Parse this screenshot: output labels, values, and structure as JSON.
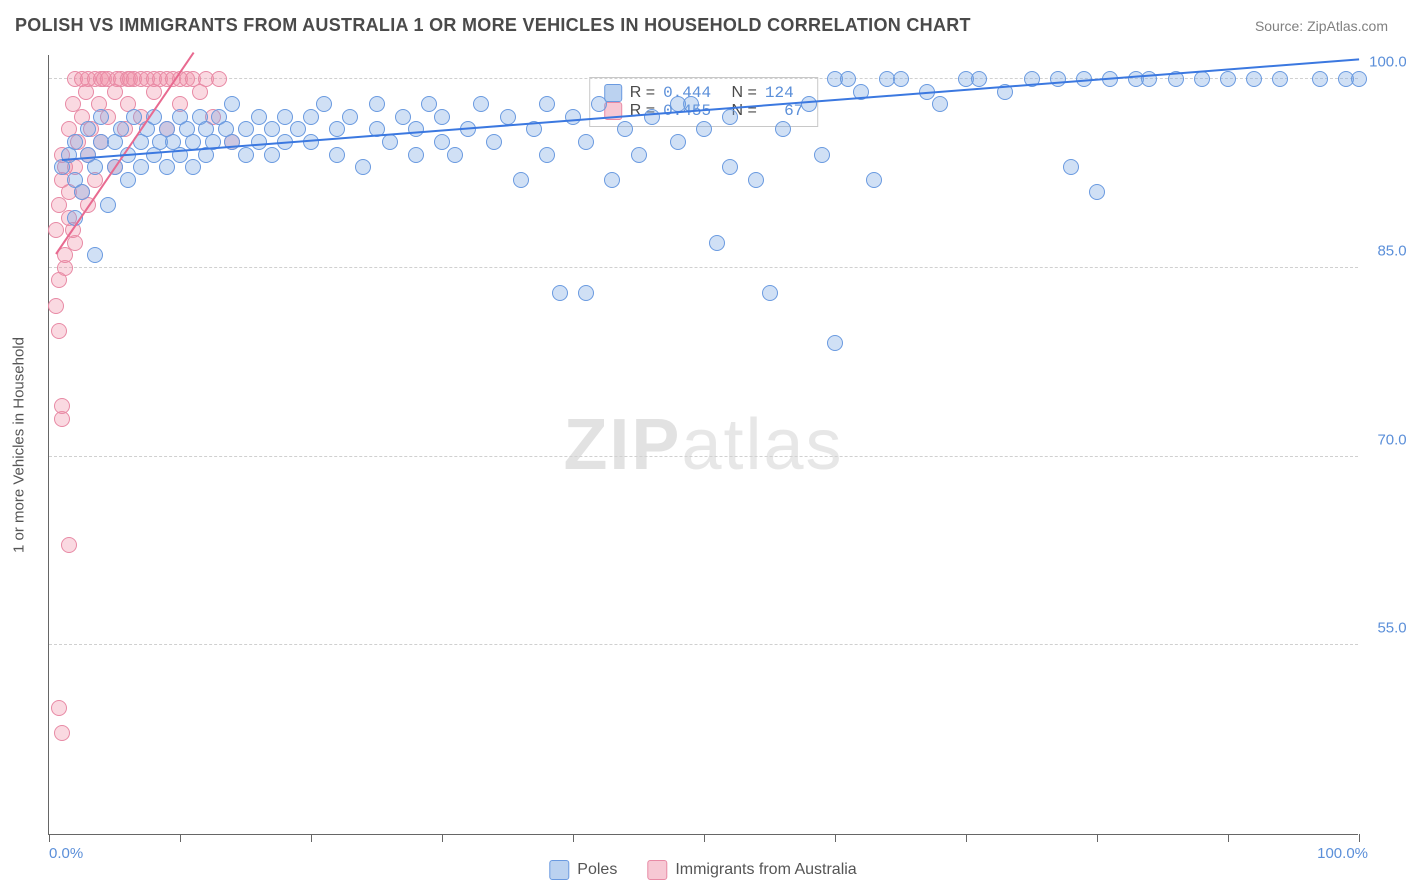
{
  "title": "POLISH VS IMMIGRANTS FROM AUSTRALIA 1 OR MORE VEHICLES IN HOUSEHOLD CORRELATION CHART",
  "source": "Source: ZipAtlas.com",
  "watermark_bold": "ZIP",
  "watermark_light": "atlas",
  "chart": {
    "type": "scatter",
    "y_axis_title": "1 or more Vehicles in Household",
    "background_color": "#ffffff",
    "grid_color": "#d0d0d0",
    "axis_color": "#666666",
    "xlim": [
      0,
      100
    ],
    "ylim": [
      40,
      102
    ],
    "x_ticks": [
      0,
      10,
      20,
      30,
      40,
      50,
      60,
      70,
      80,
      90,
      100
    ],
    "x_tick_labels": {
      "0": "0.0%",
      "100": "100.0%"
    },
    "y_ticks": [
      55,
      70,
      85,
      100
    ],
    "y_tick_labels": [
      "55.0%",
      "70.0%",
      "85.0%",
      "100.0%"
    ],
    "tick_label_color": "#5b8fd9",
    "tick_label_fontsize": 15,
    "marker_size": 16,
    "series": {
      "blue": {
        "label": "Poles",
        "R": "0.444",
        "N": "124",
        "fill_color": "rgba(120,165,225,0.35)",
        "stroke_color": "#6a9ae0",
        "trend_color": "#3b78e0",
        "trend": {
          "x1": 1,
          "y1": 93.5,
          "x2": 100,
          "y2": 101.5
        },
        "points": [
          [
            1,
            93
          ],
          [
            1.5,
            94
          ],
          [
            2,
            92
          ],
          [
            2,
            95
          ],
          [
            2.5,
            91
          ],
          [
            3,
            94
          ],
          [
            3,
            96
          ],
          [
            3.5,
            93
          ],
          [
            4,
            95
          ],
          [
            4,
            97
          ],
          [
            4.5,
            90
          ],
          [
            5,
            95
          ],
          [
            5,
            93
          ],
          [
            5.5,
            96
          ],
          [
            6,
            94
          ],
          [
            6,
            92
          ],
          [
            6.5,
            97
          ],
          [
            7,
            95
          ],
          [
            7,
            93
          ],
          [
            7.5,
            96
          ],
          [
            8,
            94
          ],
          [
            8,
            97
          ],
          [
            8.5,
            95
          ],
          [
            9,
            93
          ],
          [
            9,
            96
          ],
          [
            9.5,
            95
          ],
          [
            10,
            97
          ],
          [
            10,
            94
          ],
          [
            10.5,
            96
          ],
          [
            11,
            95
          ],
          [
            11,
            93
          ],
          [
            11.5,
            97
          ],
          [
            12,
            96
          ],
          [
            12,
            94
          ],
          [
            12.5,
            95
          ],
          [
            13,
            97
          ],
          [
            13.5,
            96
          ],
          [
            14,
            95
          ],
          [
            14,
            98
          ],
          [
            15,
            96
          ],
          [
            15,
            94
          ],
          [
            16,
            97
          ],
          [
            16,
            95
          ],
          [
            17,
            96
          ],
          [
            17,
            94
          ],
          [
            18,
            97
          ],
          [
            18,
            95
          ],
          [
            19,
            96
          ],
          [
            20,
            97
          ],
          [
            20,
            95
          ],
          [
            21,
            98
          ],
          [
            22,
            96
          ],
          [
            22,
            94
          ],
          [
            23,
            97
          ],
          [
            24,
            93
          ],
          [
            25,
            96
          ],
          [
            25,
            98
          ],
          [
            26,
            95
          ],
          [
            27,
            97
          ],
          [
            28,
            94
          ],
          [
            28,
            96
          ],
          [
            29,
            98
          ],
          [
            30,
            95
          ],
          [
            30,
            97
          ],
          [
            31,
            94
          ],
          [
            32,
            96
          ],
          [
            33,
            98
          ],
          [
            34,
            95
          ],
          [
            35,
            97
          ],
          [
            36,
            92
          ],
          [
            37,
            96
          ],
          [
            38,
            94
          ],
          [
            38,
            98
          ],
          [
            39,
            83
          ],
          [
            40,
            97
          ],
          [
            41,
            95
          ],
          [
            41,
            83
          ],
          [
            42,
            98
          ],
          [
            43,
            92
          ],
          [
            44,
            96
          ],
          [
            45,
            94
          ],
          [
            46,
            97
          ],
          [
            48,
            95
          ],
          [
            49,
            98
          ],
          [
            50,
            96
          ],
          [
            51,
            87
          ],
          [
            52,
            97
          ],
          [
            54,
            92
          ],
          [
            55,
            83
          ],
          [
            56,
            96
          ],
          [
            58,
            98
          ],
          [
            59,
            94
          ],
          [
            60,
            100
          ],
          [
            61,
            100
          ],
          [
            62,
            99
          ],
          [
            63,
            92
          ],
          [
            64,
            100
          ],
          [
            65,
            100
          ],
          [
            67,
            99
          ],
          [
            68,
            98
          ],
          [
            2,
            89
          ],
          [
            3.5,
            86
          ],
          [
            60,
            79
          ],
          [
            70,
            100
          ],
          [
            71,
            100
          ],
          [
            73,
            99
          ],
          [
            75,
            100
          ],
          [
            77,
            100
          ],
          [
            78,
            93
          ],
          [
            79,
            100
          ],
          [
            81,
            100
          ],
          [
            83,
            100
          ],
          [
            84,
            100
          ],
          [
            86,
            100
          ],
          [
            80,
            91
          ],
          [
            88,
            100
          ],
          [
            90,
            100
          ],
          [
            92,
            100
          ],
          [
            94,
            100
          ],
          [
            97,
            100
          ],
          [
            99,
            100
          ],
          [
            100,
            100
          ],
          [
            48,
            98
          ],
          [
            52,
            93
          ]
        ]
      },
      "pink": {
        "label": "Immigrants from Australia",
        "R": "0.455",
        "N": "67",
        "fill_color": "rgba(240,145,170,0.35)",
        "stroke_color": "#e88aa5",
        "trend_color": "#e86a90",
        "trend": {
          "x1": 0.5,
          "y1": 86,
          "x2": 11,
          "y2": 102
        },
        "points": [
          [
            0.5,
            88
          ],
          [
            0.8,
            90
          ],
          [
            1,
            92
          ],
          [
            1,
            94
          ],
          [
            1.2,
            85
          ],
          [
            1.5,
            96
          ],
          [
            1.5,
            91
          ],
          [
            1.8,
            98
          ],
          [
            2,
            93
          ],
          [
            2,
            100
          ],
          [
            2.2,
            95
          ],
          [
            2.5,
            100
          ],
          [
            2.5,
            97
          ],
          [
            2.8,
            99
          ],
          [
            3,
            94
          ],
          [
            3,
            100
          ],
          [
            3.2,
            96
          ],
          [
            3.5,
            100
          ],
          [
            3.5,
            92
          ],
          [
            3.8,
            98
          ],
          [
            4,
            100
          ],
          [
            4,
            95
          ],
          [
            4.2,
            100
          ],
          [
            4.5,
            97
          ],
          [
            4.5,
            100
          ],
          [
            5,
            99
          ],
          [
            5,
            93
          ],
          [
            5.2,
            100
          ],
          [
            5.5,
            100
          ],
          [
            5.8,
            96
          ],
          [
            6,
            100
          ],
          [
            6,
            98
          ],
          [
            6.2,
            100
          ],
          [
            6.5,
            100
          ],
          [
            7,
            97
          ],
          [
            7,
            100
          ],
          [
            7.5,
            100
          ],
          [
            8,
            99
          ],
          [
            8,
            100
          ],
          [
            8.5,
            100
          ],
          [
            9,
            96
          ],
          [
            9,
            100
          ],
          [
            9.5,
            100
          ],
          [
            10,
            98
          ],
          [
            10,
            100
          ],
          [
            10.5,
            100
          ],
          [
            11,
            100
          ],
          [
            11.5,
            99
          ],
          [
            12,
            100
          ],
          [
            12.5,
            97
          ],
          [
            13,
            100
          ],
          [
            14,
            95
          ],
          [
            0.5,
            82
          ],
          [
            0.8,
            80
          ],
          [
            1,
            73
          ],
          [
            1,
            74
          ],
          [
            1.5,
            63
          ],
          [
            0.8,
            50
          ],
          [
            1,
            48
          ],
          [
            1.2,
            93
          ],
          [
            1.5,
            89
          ],
          [
            2,
            87
          ],
          [
            2.5,
            91
          ],
          [
            3,
            90
          ],
          [
            0.8,
            84
          ],
          [
            1.2,
            86
          ],
          [
            1.8,
            88
          ]
        ]
      }
    }
  },
  "legend_top": {
    "rows": [
      {
        "swatch": "blue",
        "r_label": "R =",
        "r_val": "0.444",
        "n_label": "N =",
        "n_val": "124"
      },
      {
        "swatch": "pink",
        "r_label": "R =",
        "r_val": "0.455",
        "n_label": "N =",
        "n_val": "  67"
      }
    ]
  },
  "legend_bottom": [
    {
      "swatch": "blue",
      "label": "Poles"
    },
    {
      "swatch": "pink",
      "label": "Immigrants from Australia"
    }
  ]
}
